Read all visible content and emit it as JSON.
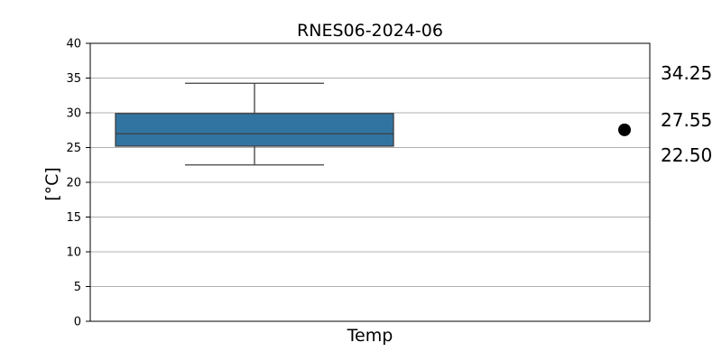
{
  "chart_data": {
    "type": "box",
    "title": "RNES06-2024-06",
    "xlabel": "Temp",
    "ylabel": "[°C]",
    "ylim": [
      0,
      40
    ],
    "yticks": [
      0,
      5,
      10,
      15,
      20,
      25,
      30,
      35,
      40
    ],
    "grid": true,
    "box": {
      "category": "Temp",
      "whisker_low": 22.5,
      "q1": 25.2,
      "median": 27.0,
      "q3": 29.9,
      "whisker_high": 34.25,
      "color": "#3274a1"
    },
    "marker": {
      "value": 27.55,
      "color": "#000000"
    },
    "side_labels": [
      "34.25",
      "27.55",
      "22.50"
    ]
  }
}
